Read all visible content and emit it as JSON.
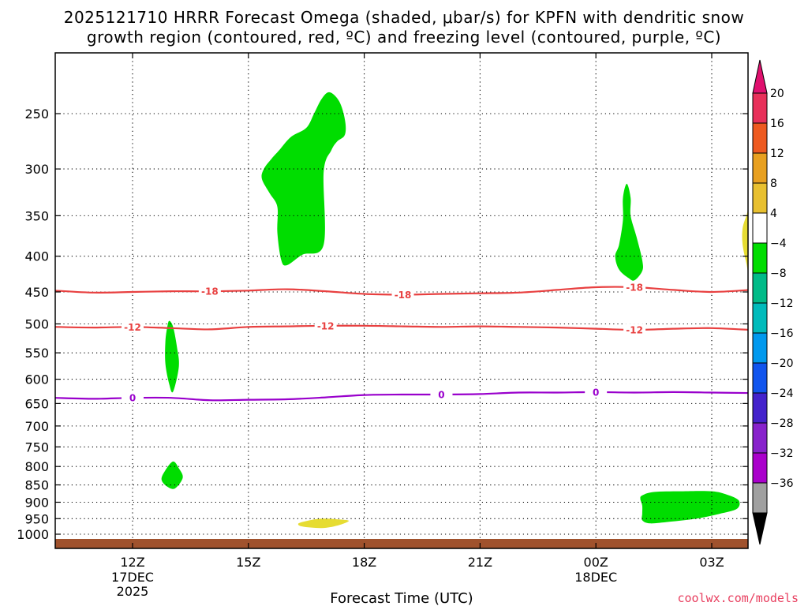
{
  "chart_data": {
    "type": "contour",
    "title_line1": "2025121710 HRRR Forecast Omega (shaded, μbar/s) for KPFN with dendritic snow",
    "title_line2": "growth region (contoured, red, ºC) and freezing level (contoured, purple, ºC)",
    "xlabel": "Forecast Time (UTC)",
    "ylabel": "",
    "credit": "coolwx.com/models",
    "x_ticks": [
      {
        "hour": 12,
        "label": "12Z",
        "sub1": "17DEC",
        "sub2": "2025"
      },
      {
        "hour": 15,
        "label": "15Z",
        "sub1": "",
        "sub2": ""
      },
      {
        "hour": 18,
        "label": "18Z",
        "sub1": "",
        "sub2": ""
      },
      {
        "hour": 21,
        "label": "21Z",
        "sub1": "",
        "sub2": ""
      },
      {
        "hour": 24,
        "label": "00Z",
        "sub1": "18DEC",
        "sub2": ""
      },
      {
        "hour": 27,
        "label": "03Z",
        "sub1": "",
        "sub2": ""
      }
    ],
    "xlim": [
      10,
      28
    ],
    "ylim": [
      1000,
      200
    ],
    "y_scale": "log-pressure",
    "y_ticks": [
      250,
      300,
      350,
      400,
      450,
      500,
      550,
      600,
      650,
      700,
      750,
      800,
      850,
      900,
      950,
      1000
    ],
    "grid": true,
    "contours": [
      {
        "level": -18,
        "label": "-18",
        "color": "#e84040",
        "points": [
          [
            10,
            448
          ],
          [
            11,
            451
          ],
          [
            12,
            450
          ],
          [
            13,
            449
          ],
          [
            14,
            449
          ],
          [
            15,
            448
          ],
          [
            16,
            446
          ],
          [
            17,
            449
          ],
          [
            18,
            453
          ],
          [
            19,
            454
          ],
          [
            20,
            453
          ],
          [
            21,
            452
          ],
          [
            22,
            451
          ],
          [
            23,
            447
          ],
          [
            24,
            443
          ],
          [
            25,
            443
          ],
          [
            26,
            447
          ],
          [
            27,
            450
          ],
          [
            28,
            447
          ]
        ],
        "label_positions": [
          [
            14,
            449
          ],
          [
            19,
            454
          ],
          [
            25,
            443
          ]
        ]
      },
      {
        "level": -12,
        "label": "-12",
        "color": "#e84040",
        "points": [
          [
            10,
            505
          ],
          [
            11,
            506
          ],
          [
            12,
            505
          ],
          [
            13,
            507
          ],
          [
            14,
            509
          ],
          [
            15,
            505
          ],
          [
            16,
            504
          ],
          [
            17,
            503
          ],
          [
            18,
            503
          ],
          [
            19,
            504
          ],
          [
            20,
            505
          ],
          [
            21,
            504
          ],
          [
            22,
            505
          ],
          [
            23,
            506
          ],
          [
            24,
            508
          ],
          [
            25,
            510
          ],
          [
            26,
            508
          ],
          [
            27,
            507
          ],
          [
            28,
            510
          ]
        ],
        "label_positions": [
          [
            12,
            505
          ],
          [
            17,
            503
          ],
          [
            25,
            510
          ]
        ]
      },
      {
        "level": 0,
        "label": "0",
        "color": "#9900cc",
        "points": [
          [
            10,
            638
          ],
          [
            11,
            640
          ],
          [
            12,
            638
          ],
          [
            13,
            638
          ],
          [
            14,
            643
          ],
          [
            15,
            642
          ],
          [
            16,
            641
          ],
          [
            17,
            637
          ],
          [
            18,
            632
          ],
          [
            19,
            631
          ],
          [
            20,
            631
          ],
          [
            21,
            630
          ],
          [
            22,
            627
          ],
          [
            23,
            627
          ],
          [
            24,
            626
          ],
          [
            25,
            627
          ],
          [
            26,
            626
          ],
          [
            27,
            627
          ],
          [
            28,
            628
          ]
        ],
        "label_positions": [
          [
            12,
            638
          ],
          [
            20,
            631
          ],
          [
            24,
            626
          ]
        ]
      }
    ],
    "shaded_regions": [
      {
        "value_range": "-8 to -4",
        "color": "#00dd00",
        "outline": [
          [
            15.35,
            310
          ],
          [
            15.4,
            300
          ],
          [
            15.6,
            290
          ],
          [
            15.8,
            282
          ],
          [
            16.1,
            270
          ],
          [
            16.5,
            262
          ],
          [
            16.7,
            250
          ],
          [
            16.9,
            238
          ],
          [
            17.1,
            233
          ],
          [
            17.35,
            240
          ],
          [
            17.5,
            255
          ],
          [
            17.5,
            268
          ],
          [
            17.3,
            274
          ],
          [
            17.15,
            282
          ],
          [
            16.95,
            303
          ],
          [
            16.95,
            385
          ],
          [
            16.4,
            398
          ],
          [
            16.0,
            412
          ],
          [
            15.85,
            405
          ],
          [
            15.75,
            370
          ],
          [
            15.75,
            340
          ],
          [
            15.55,
            325
          ]
        ]
      },
      {
        "value_range": "-8 to -4",
        "color": "#00dd00",
        "outline": [
          [
            24.8,
            315
          ],
          [
            24.9,
            330
          ],
          [
            24.9,
            350
          ],
          [
            25.05,
            375
          ],
          [
            25.2,
            405
          ],
          [
            25.2,
            420
          ],
          [
            25.0,
            433
          ],
          [
            24.85,
            430
          ],
          [
            24.6,
            418
          ],
          [
            24.5,
            400
          ],
          [
            24.6,
            385
          ],
          [
            24.7,
            355
          ],
          [
            24.7,
            330
          ]
        ]
      },
      {
        "value_range": "-8 to -4",
        "color": "#00dd00",
        "outline": [
          [
            12.95,
            495
          ],
          [
            13.05,
            505
          ],
          [
            13.15,
            540
          ],
          [
            13.2,
            575
          ],
          [
            13.05,
            625
          ],
          [
            12.95,
            610
          ],
          [
            12.85,
            570
          ],
          [
            12.85,
            530
          ],
          [
            12.9,
            505
          ]
        ]
      },
      {
        "value_range": "-8 to -4",
        "color": "#00dd00",
        "outline": [
          [
            13.05,
            787
          ],
          [
            13.2,
            805
          ],
          [
            13.3,
            830
          ],
          [
            13.1,
            860
          ],
          [
            12.9,
            855
          ],
          [
            12.75,
            835
          ],
          [
            12.85,
            810
          ]
        ]
      },
      {
        "value_range": "-8 to -4",
        "color": "#00dd00",
        "outline": [
          [
            25.2,
            880
          ],
          [
            25.5,
            870
          ],
          [
            26.2,
            868
          ],
          [
            27.0,
            868
          ],
          [
            27.4,
            878
          ],
          [
            27.7,
            895
          ],
          [
            27.65,
            920
          ],
          [
            27.2,
            935
          ],
          [
            26.6,
            950
          ],
          [
            25.9,
            960
          ],
          [
            25.4,
            965
          ],
          [
            25.2,
            955
          ],
          [
            25.2,
            935
          ],
          [
            25.2,
            910
          ],
          [
            25.15,
            890
          ]
        ]
      },
      {
        "value_range": "4 to 8",
        "color": "#e6dc32",
        "outline": [
          [
            17.6,
            957
          ],
          [
            17.3,
            952
          ],
          [
            16.9,
            950
          ],
          [
            16.6,
            955
          ],
          [
            16.3,
            965
          ],
          [
            16.4,
            975
          ],
          [
            16.9,
            980
          ],
          [
            17.3,
            972
          ]
        ]
      },
      {
        "value_range": "4 to 8",
        "color": "#e6dc32",
        "outline": [
          [
            28.0,
            340
          ],
          [
            27.9,
            350
          ],
          [
            27.8,
            365
          ],
          [
            27.8,
            385
          ],
          [
            27.9,
            410
          ],
          [
            28.0,
            430
          ]
        ]
      }
    ],
    "ground_color": "#a0522d",
    "colorbar": {
      "ticks": [
        20,
        16,
        12,
        8,
        4,
        -4,
        -8,
        -12,
        -16,
        -20,
        -24,
        -28,
        -32,
        -36
      ],
      "bins": [
        {
          "color": "#e8305a"
        },
        {
          "color": "#ee5a20"
        },
        {
          "color": "#e8a020"
        },
        {
          "color": "#e8c030"
        },
        {
          "color": "#ffffff"
        },
        {
          "color": "#00dd00"
        },
        {
          "color": "#00bb88"
        },
        {
          "color": "#00bbbb"
        },
        {
          "color": "#0099ee"
        },
        {
          "color": "#1155ee"
        },
        {
          "color": "#4422cc"
        },
        {
          "color": "#8822cc"
        },
        {
          "color": "#aa00cc"
        },
        {
          "color": "#a0a0a0"
        }
      ],
      "top_arrow_color": "#e0106e",
      "bottom_arrow_color": "#000000"
    }
  }
}
